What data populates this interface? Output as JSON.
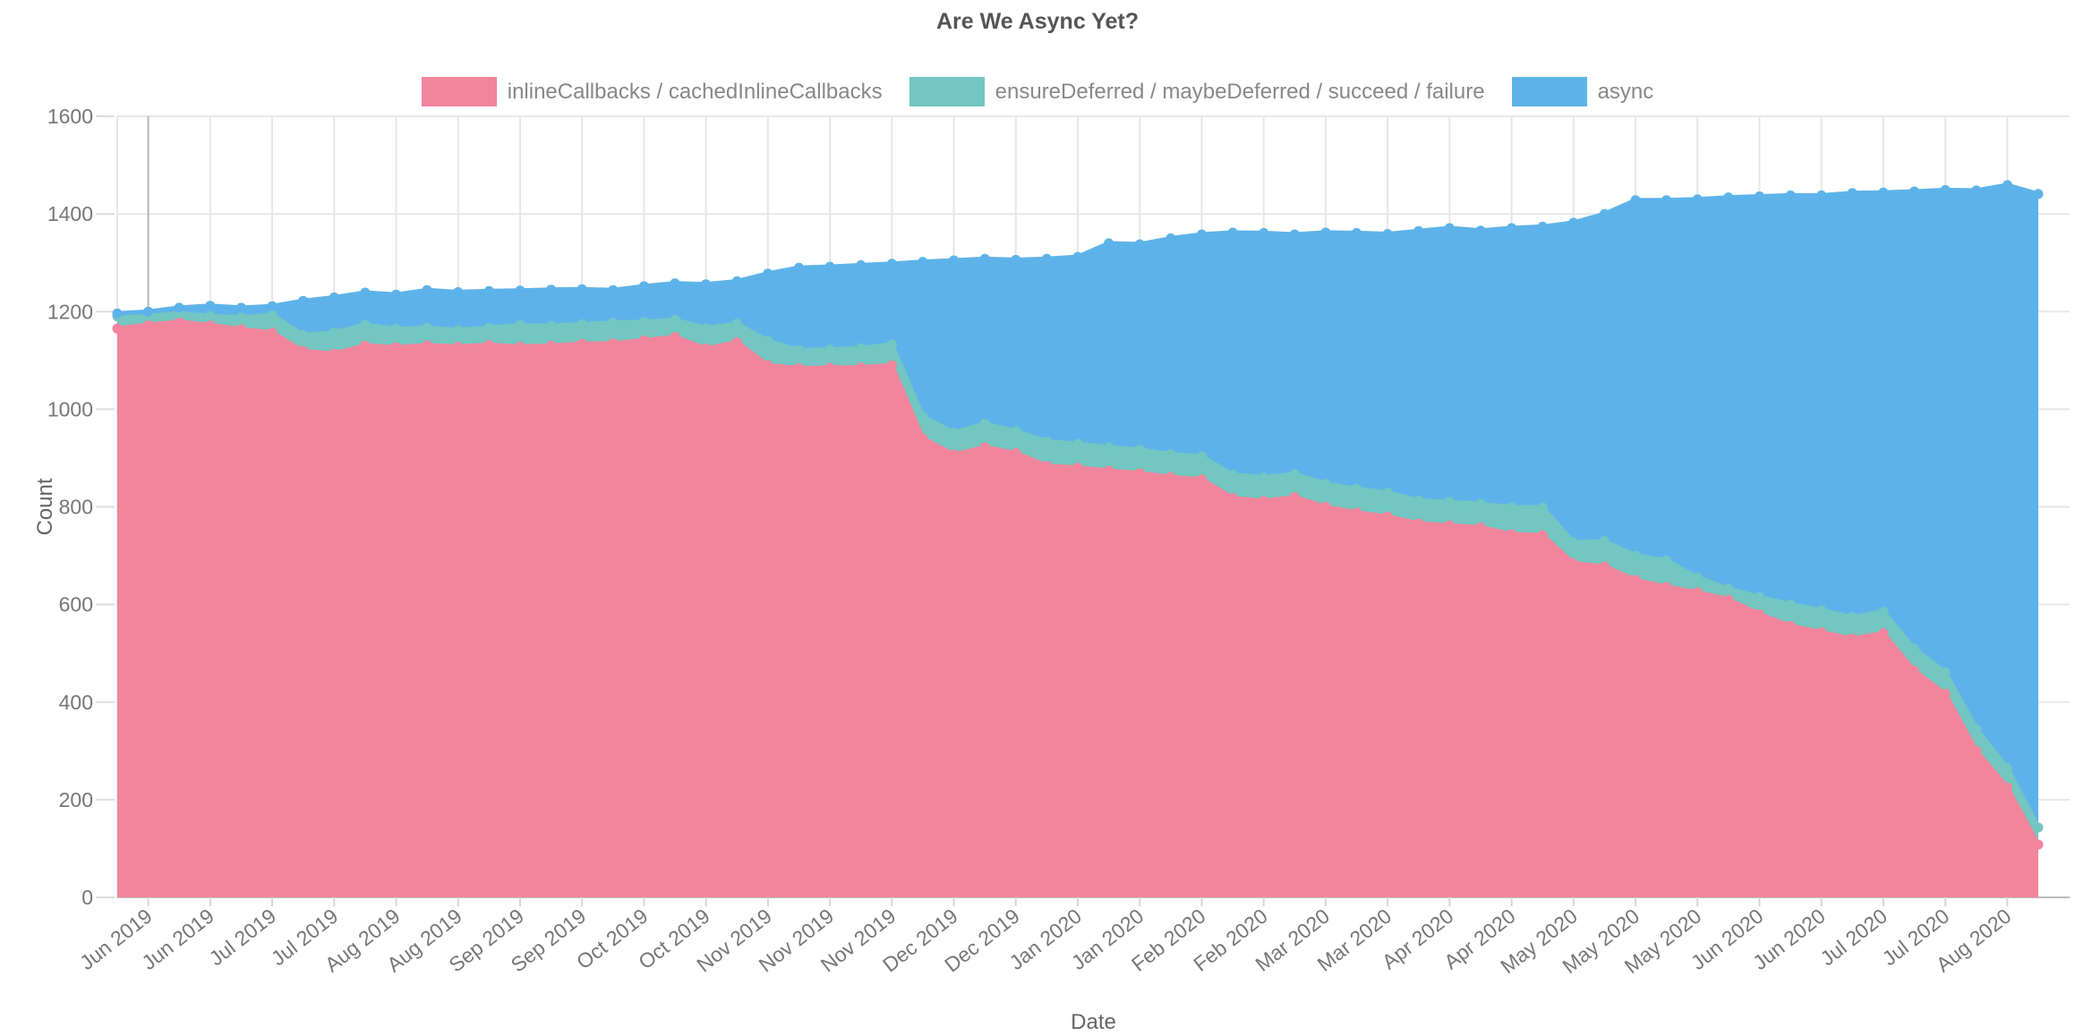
{
  "title": "Are We Async Yet?",
  "legend": {
    "items": [
      {
        "label": "inlineCallbacks / cachedInlineCallbacks",
        "color": "#F1859B"
      },
      {
        "label": "ensureDeferred / maybeDeferred / succeed / failure",
        "color": "#73C6C1"
      },
      {
        "label": "async",
        "color": "#5DB3E9"
      }
    ]
  },
  "axes": {
    "x_title": "Date",
    "y_title": "Count",
    "y_ticks": [
      0,
      200,
      400,
      600,
      800,
      1000,
      1200,
      1400,
      1600
    ],
    "x_tick_labels": [
      "Jun 2019",
      "Jun 2019",
      "Jul 2019",
      "Jul 2019",
      "Aug 2019",
      "Aug 2019",
      "Sep 2019",
      "Sep 2019",
      "Oct 2019",
      "Oct 2019",
      "Nov 2019",
      "Nov 2019",
      "Nov 2019",
      "Dec 2019",
      "Dec 2019",
      "Jan 2020",
      "Jan 2020",
      "Feb 2020",
      "Feb 2020",
      "Mar 2020",
      "Mar 2020",
      "Apr 2020",
      "Apr 2020",
      "May 2020",
      "May 2020",
      "May 2020",
      "Jun 2020",
      "Jun 2020",
      "Jul 2020",
      "Jul 2020",
      "Aug 2020"
    ],
    "x_tick_days": [
      7,
      21,
      35,
      49,
      63,
      77,
      91,
      105,
      119,
      133,
      147,
      161,
      175,
      189,
      203,
      217,
      231,
      245,
      259,
      273,
      287,
      301,
      315,
      329,
      343,
      357,
      371,
      385,
      399,
      413,
      427
    ]
  },
  "chart_data": {
    "type": "area",
    "stacked": true,
    "title": "Are We Async Yet?",
    "xlabel": "Date",
    "ylabel": "Count",
    "ylim": [
      0,
      1600
    ],
    "grid": true,
    "legend_position": "top",
    "x_start_date": "2019-06-08",
    "x_end_date": "2020-08-15",
    "x_days": [
      0,
      7,
      14,
      21,
      28,
      35,
      42,
      49,
      56,
      63,
      70,
      77,
      84,
      91,
      98,
      105,
      112,
      119,
      126,
      133,
      140,
      147,
      154,
      161,
      168,
      175,
      182,
      189,
      196,
      203,
      210,
      217,
      224,
      231,
      238,
      245,
      252,
      259,
      266,
      273,
      280,
      287,
      294,
      301,
      308,
      315,
      322,
      329,
      336,
      343,
      350,
      357,
      364,
      371,
      378,
      385,
      392,
      399,
      406,
      413,
      420,
      427,
      434
    ],
    "series": [
      {
        "name": "inlineCallbacks / cachedInlineCallbacks",
        "color": "#F1859B",
        "values": [
          1165,
          1173,
          1179,
          1172,
          1164,
          1157,
          1119,
          1114,
          1130,
          1127,
          1131,
          1128,
          1132,
          1128,
          1130,
          1134,
          1135,
          1141,
          1148,
          1124,
          1137,
          1090,
          1084,
          1085,
          1086,
          1090,
          940,
          907,
          922,
          910,
          884,
          880,
          874,
          869,
          861,
          856,
          818,
          812,
          820,
          800,
          788,
          780,
          766,
          762,
          758,
          744,
          742,
          684,
          678,
          650,
          636,
          625,
          610,
          580,
          556,
          543,
          530,
          541,
          464,
          417,
          300,
          225,
          108
        ]
      },
      {
        "name": "ensureDeferred / maybeDeferred / succeed / failure",
        "color": "#73C6C1",
        "values": [
          25,
          18,
          17,
          19,
          24,
          36,
          33,
          43,
          43,
          37,
          36,
          34,
          35,
          44,
          41,
          40,
          42,
          38,
          35,
          42,
          38,
          50,
          37,
          37,
          39,
          43,
          45,
          45,
          48,
          45,
          50,
          49,
          48,
          48,
          47,
          47,
          48,
          48,
          47,
          47,
          49,
          49,
          47,
          48,
          48,
          55,
          57,
          43,
          52,
          50,
          54,
          30,
          22,
          35,
          44,
          45,
          44,
          44,
          45,
          44,
          45,
          40,
          35
        ]
      },
      {
        "name": "async",
        "color": "#5DB3E9",
        "values": [
          6,
          9,
          12,
          21,
          20,
          18,
          70,
          72,
          66,
          71,
          77,
          78,
          75,
          71,
          74,
          72,
          67,
          73,
          75,
          90,
          87,
          138,
          169,
          170,
          170,
          165,
          317,
          353,
          338,
          351,
          374,
          383,
          418,
          421,
          442,
          455,
          496,
          501,
          491,
          515,
          524,
          530,
          552,
          561,
          560,
          572,
          575,
          655,
          670,
          728,
          738,
          775,
          802,
          821,
          838,
          850,
          869,
          859,
          937,
          988,
          1103,
          1194,
          1298
        ]
      }
    ]
  }
}
